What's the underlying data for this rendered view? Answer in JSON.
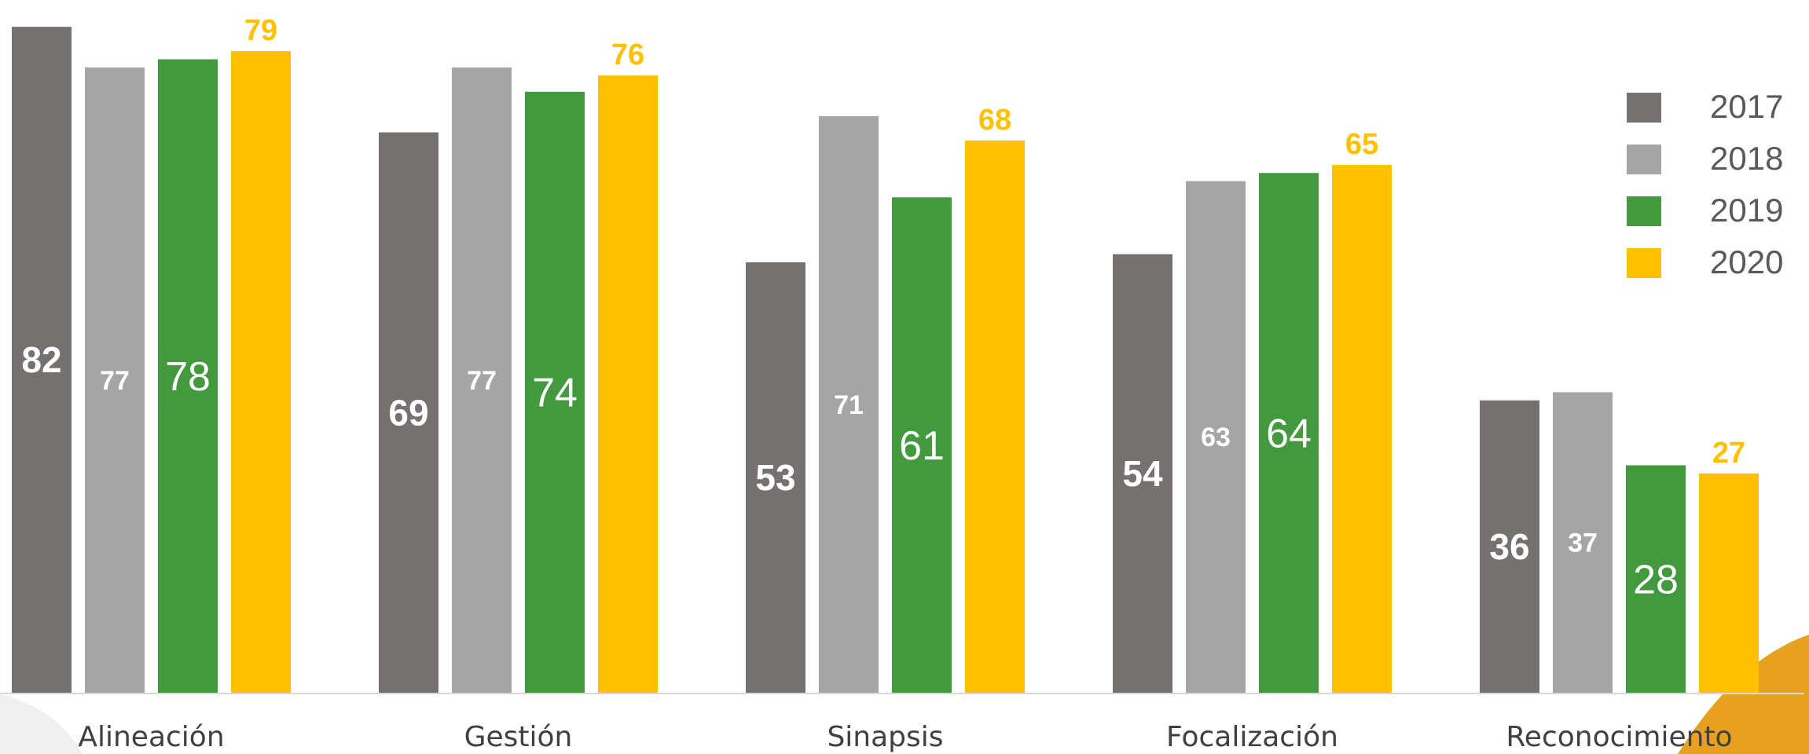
{
  "chart_data": {
    "type": "bar",
    "categories": [
      "Alineación",
      "Gestión",
      "Sinapsis",
      "Focalización",
      "Reconocimiento"
    ],
    "series": [
      {
        "name": "2017",
        "color": "#747170",
        "values": [
          82,
          69,
          53,
          54,
          36
        ]
      },
      {
        "name": "2018",
        "color": "#A5A5A5",
        "values": [
          77,
          77,
          71,
          63,
          37
        ]
      },
      {
        "name": "2019",
        "color": "#43993E",
        "values": [
          78,
          74,
          61,
          64,
          28
        ]
      },
      {
        "name": "2020",
        "color": "#FFC000",
        "values": [
          79,
          76,
          68,
          65,
          27
        ]
      }
    ],
    "ylim": [
      0,
      85
    ],
    "grid": false,
    "legend_position": "top-right",
    "title": "",
    "xlabel": "",
    "ylabel": ""
  }
}
